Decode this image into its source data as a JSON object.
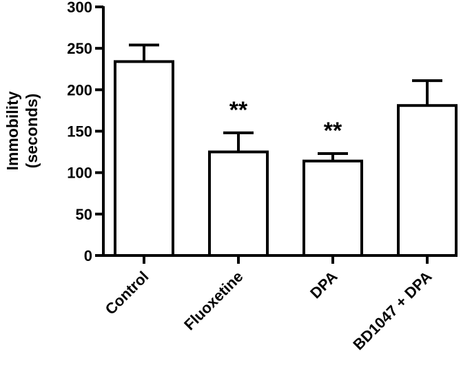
{
  "chart_data": {
    "type": "bar",
    "title": "",
    "xlabel": "",
    "ylabel_lines": [
      "Immobility",
      "(seconds)"
    ],
    "ylim": [
      0,
      300
    ],
    "yticks": [
      0,
      50,
      100,
      150,
      200,
      250,
      300
    ],
    "grid": false,
    "categories": [
      "Control",
      "Fluoxetine",
      "DPA",
      "BD1047 + DPA"
    ],
    "values": [
      234,
      125,
      114,
      181
    ],
    "error_upper": [
      254,
      148,
      123,
      211
    ],
    "annotations": [
      "",
      "**",
      "**",
      ""
    ],
    "bar_fill": "#ffffff",
    "bar_stroke": "#000000"
  }
}
